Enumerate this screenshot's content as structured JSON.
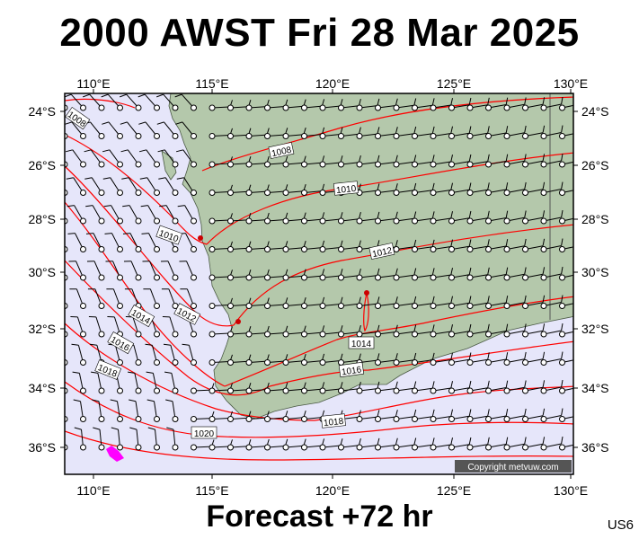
{
  "title": "2000 AWST Fri 28 Mar 2025",
  "footer": "Forecast +72 hr",
  "region_code": "US6",
  "copyright": "Copyright metvuw.com",
  "lon_labels": [
    "110°E",
    "115°E",
    "120°E",
    "125°E",
    "130°E"
  ],
  "lat_labels": [
    "24°S",
    "26°S",
    "28°S",
    "30°S",
    "32°S",
    "34°S",
    "36°S"
  ],
  "colors": {
    "ocean": "#e6e6fa",
    "land": "#b4c8ab",
    "isobar": "#ff0000",
    "high_wind": "#ff00ff"
  },
  "isobars": [
    {
      "label": "1008"
    },
    {
      "label": "1010"
    },
    {
      "label": "1012"
    },
    {
      "label": "1014"
    },
    {
      "label": "1016"
    },
    {
      "label": "1018"
    },
    {
      "label": "1020"
    }
  ],
  "isobar_label_text": [
    "1008",
    "1008",
    "1010",
    "1010",
    "1012",
    "1012",
    "1014",
    "1014",
    "1016",
    "1016",
    "1018",
    "1018",
    "1020"
  ]
}
